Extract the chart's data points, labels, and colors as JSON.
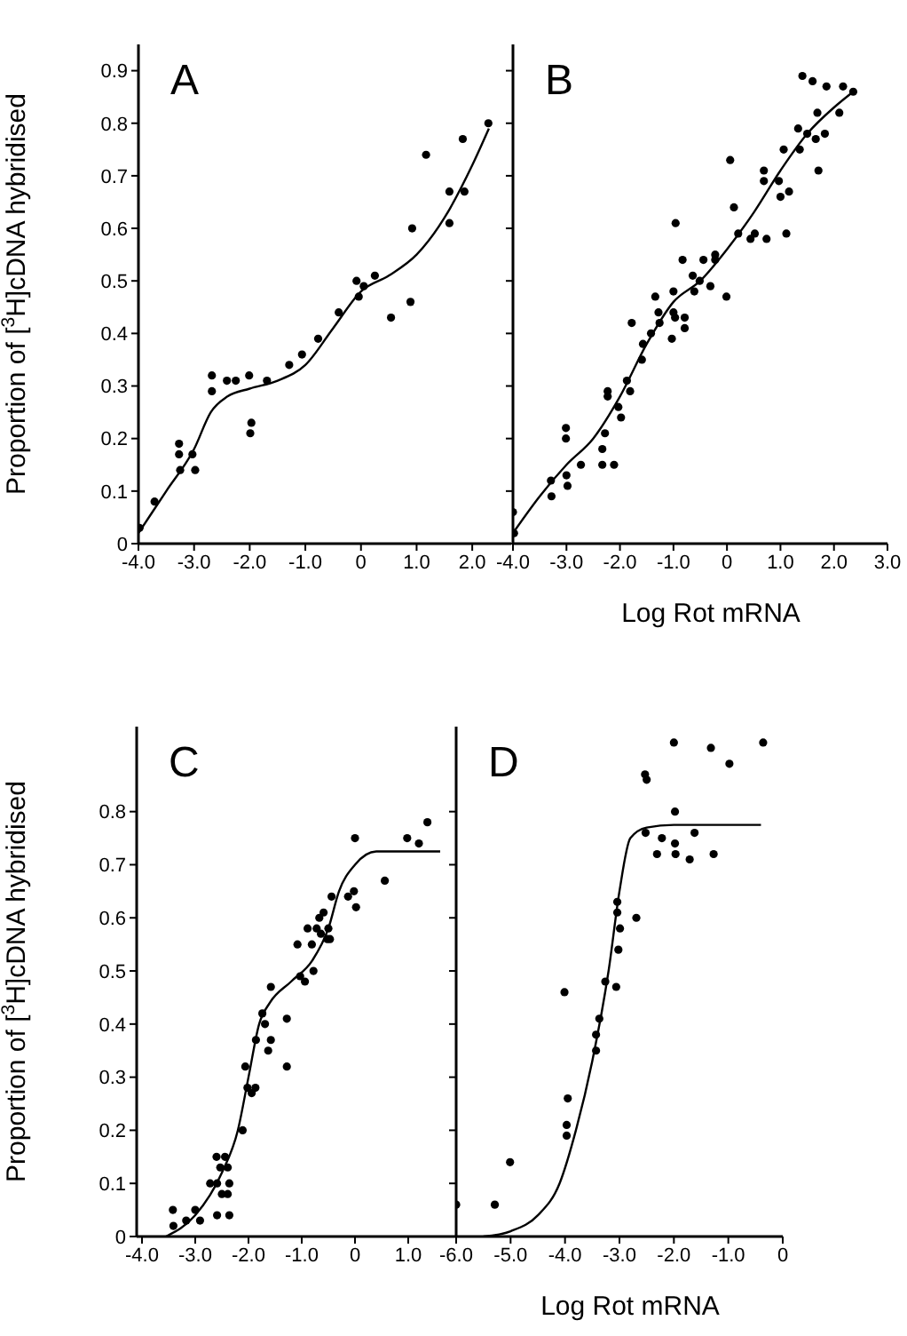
{
  "chart_data": [
    {
      "type": "scatter",
      "title": "A",
      "ylabel": "Proportion of [$^{3}$H]cDNA hybridised",
      "xlim": [
        -4.0,
        2.7
      ],
      "ylim": [
        0,
        0.95
      ],
      "xticks": [
        {
          "value": -4,
          "label": "-4.0"
        },
        {
          "value": -3,
          "label": "-3.0"
        },
        {
          "value": -2,
          "label": "-2.0"
        },
        {
          "value": -1,
          "label": "-1.0"
        },
        {
          "value": 0,
          "label": "0"
        },
        {
          "value": 1,
          "label": "1.0"
        },
        {
          "value": 2,
          "label": "2.0"
        }
      ],
      "yticks": [
        0,
        0.1,
        0.2,
        0.3,
        0.4,
        0.5,
        0.6,
        0.7,
        0.8,
        0.9
      ],
      "series": [
        {
          "marker": "circle",
          "color": "#000000",
          "x": [
            -3.98,
            -3.71,
            -3.27,
            -3.27,
            -3.25,
            -3.03,
            -2.98,
            -2.68,
            -2.68,
            -2.41,
            -2.25,
            -2.01,
            -1.97,
            -1.99,
            -1.69,
            -1.29,
            -1.06,
            -0.77,
            -0.4,
            -0.08,
            -0.04,
            0.05,
            0.25,
            0.54,
            0.89,
            0.92,
            1.17,
            1.59,
            1.59,
            1.86,
            1.83,
            2.29
          ],
          "values": [
            0.03,
            0.08,
            0.19,
            0.17,
            0.14,
            0.17,
            0.14,
            0.32,
            0.29,
            0.31,
            0.31,
            0.32,
            0.23,
            0.21,
            0.31,
            0.34,
            0.36,
            0.39,
            0.44,
            0.5,
            0.47,
            0.49,
            0.51,
            0.43,
            0.46,
            0.6,
            0.74,
            0.61,
            0.67,
            0.67,
            0.77,
            0.8
          ]
        },
        {
          "type": "line",
          "marker": "none",
          "color": "#000000",
          "x": [
            -4,
            -3.5,
            -3.0,
            -2.7,
            -2.4,
            -2.0,
            -1.5,
            -1.0,
            -0.5,
            0,
            0.5,
            1.0,
            1.5,
            2.0,
            2.3
          ],
          "values": [
            0.02,
            0.1,
            0.18,
            0.25,
            0.28,
            0.295,
            0.31,
            0.34,
            0.41,
            0.48,
            0.51,
            0.55,
            0.62,
            0.72,
            0.79
          ]
        }
      ]
    },
    {
      "type": "scatter",
      "title": "B",
      "xlabel": "Log Rot mRNA",
      "tick_labels": "x",
      "xlim": [
        -4.0,
        3.0
      ],
      "ylim": [
        0,
        0.95
      ],
      "xticks": [
        {
          "value": -4,
          "label": "-4.0"
        },
        {
          "value": -3,
          "label": "-3.0"
        },
        {
          "value": -2,
          "label": "-2.0"
        },
        {
          "value": -1,
          "label": "-1.0"
        },
        {
          "value": 0,
          "label": "0"
        },
        {
          "value": 1,
          "label": "1.0"
        },
        {
          "value": 2,
          "label": "2.0"
        },
        {
          "value": 3,
          "label": "3.0"
        }
      ],
      "yticks": [
        0,
        0.1,
        0.2,
        0.3,
        0.4,
        0.5,
        0.6,
        0.7,
        0.8,
        0.9
      ],
      "series": [
        {
          "marker": "circle",
          "color": "#000000",
          "x": [
            -4.0,
            -3.98,
            -3.29,
            -3.28,
            -3.01,
            -3.01,
            -3.0,
            -2.98,
            -2.73,
            -2.33,
            -2.33,
            -2.28,
            -2.23,
            -2.23,
            -2.11,
            -2.03,
            -1.98,
            -1.87,
            -1.81,
            -1.78,
            -1.59,
            -1.57,
            -1.42,
            -1.34,
            -1.28,
            -1.26,
            -1.03,
            -1.0,
            -1.0,
            -0.97,
            -0.96,
            -0.79,
            -0.79,
            -0.83,
            -0.64,
            -0.61,
            -0.51,
            -0.44,
            -0.31,
            -0.22,
            -0.22,
            -0.01,
            0.06,
            0.13,
            0.21,
            0.44,
            0.52,
            0.69,
            0.69,
            0.74,
            0.97,
            1.0,
            1.06,
            1.16,
            1.11,
            1.33,
            1.36,
            1.41,
            1.5,
            1.6,
            1.66,
            1.69,
            1.71,
            1.83,
            1.86,
            2.1,
            2.17,
            2.36
          ],
          "values": [
            0.06,
            0.02,
            0.12,
            0.09,
            0.22,
            0.2,
            0.13,
            0.11,
            0.15,
            0.18,
            0.15,
            0.21,
            0.29,
            0.28,
            0.15,
            0.26,
            0.24,
            0.31,
            0.29,
            0.42,
            0.35,
            0.38,
            0.4,
            0.47,
            0.44,
            0.42,
            0.39,
            0.44,
            0.48,
            0.43,
            0.61,
            0.43,
            0.41,
            0.54,
            0.51,
            0.48,
            0.5,
            0.54,
            0.49,
            0.55,
            0.54,
            0.47,
            0.73,
            0.64,
            0.59,
            0.58,
            0.59,
            0.71,
            0.69,
            0.58,
            0.69,
            0.66,
            0.75,
            0.67,
            0.59,
            0.79,
            0.75,
            0.89,
            0.78,
            0.88,
            0.77,
            0.82,
            0.71,
            0.78,
            0.87,
            0.82,
            0.87,
            0.86
          ]
        },
        {
          "type": "line",
          "marker": "none",
          "color": "#000000",
          "x": [
            -4,
            -3.5,
            -3.0,
            -2.5,
            -2.0,
            -1.5,
            -1.0,
            -0.5,
            0,
            0.5,
            1.0,
            1.5,
            2.0,
            2.36
          ],
          "values": [
            0.02,
            0.09,
            0.15,
            0.2,
            0.28,
            0.38,
            0.46,
            0.5,
            0.56,
            0.63,
            0.71,
            0.78,
            0.83,
            0.86
          ]
        }
      ]
    },
    {
      "type": "scatter",
      "title": "C",
      "ylabel": "Proportion of [$^{3}$H]cDNA hybridised",
      "xlim": [
        -4.1,
        1.9
      ],
      "ylim": [
        0,
        0.96
      ],
      "xticks": [
        {
          "value": -4,
          "label": "-4.0"
        },
        {
          "value": -3,
          "label": "-3.0"
        },
        {
          "value": -2,
          "label": "-2.0"
        },
        {
          "value": -1,
          "label": "-1.0"
        },
        {
          "value": 0,
          "label": "0"
        },
        {
          "value": 1,
          "label": "1.0"
        }
      ],
      "yticks": [
        0,
        0.1,
        0.2,
        0.3,
        0.4,
        0.5,
        0.6,
        0.7,
        0.8
      ],
      "series": [
        {
          "marker": "circle",
          "color": "#000000",
          "x": [
            -3.42,
            -3.41,
            -3.17,
            -3.0,
            -2.91,
            -2.72,
            -2.6,
            -2.59,
            -2.59,
            -2.53,
            -2.5,
            -2.44,
            -2.39,
            -2.39,
            -2.36,
            -2.36,
            -2.11,
            -2.06,
            -2.02,
            -1.94,
            -1.87,
            -1.86,
            -1.74,
            -1.69,
            -1.63,
            -1.58,
            -1.58,
            -1.28,
            -1.28,
            -1.08,
            -1.03,
            -0.94,
            -0.89,
            -0.81,
            -0.78,
            -0.72,
            -0.67,
            -0.64,
            -0.59,
            -0.52,
            -0.5,
            -0.47,
            -0.44,
            -0.13,
            -0.02,
            0.0,
            0.02,
            0.56,
            0.98,
            1.2,
            1.36
          ],
          "values": [
            0.05,
            0.02,
            0.03,
            0.05,
            0.03,
            0.1,
            0.15,
            0.1,
            0.04,
            0.13,
            0.08,
            0.15,
            0.13,
            0.08,
            0.1,
            0.04,
            0.2,
            0.32,
            0.28,
            0.27,
            0.28,
            0.37,
            0.42,
            0.4,
            0.35,
            0.37,
            0.47,
            0.41,
            0.32,
            0.55,
            0.49,
            0.48,
            0.58,
            0.55,
            0.5,
            0.58,
            0.6,
            0.57,
            0.61,
            0.56,
            0.58,
            0.56,
            0.64,
            0.64,
            0.65,
            0.75,
            0.62,
            0.67,
            0.75,
            0.74,
            0.78
          ]
        },
        {
          "type": "line",
          "marker": "none",
          "color": "#000000",
          "x": [
            -3.55,
            -3.0,
            -2.5,
            -2.2,
            -2.0,
            -1.8,
            -1.6,
            -1.2,
            -0.8,
            -0.5,
            -0.3,
            0,
            0.4,
            1.6
          ],
          "values": [
            0,
            0.04,
            0.12,
            0.2,
            0.3,
            0.4,
            0.44,
            0.48,
            0.52,
            0.58,
            0.65,
            0.7,
            0.725,
            0.725
          ]
        }
      ]
    },
    {
      "type": "scatter",
      "title": "D",
      "xlabel": "Log Rot mRNA",
      "tick_labels": "x",
      "xlim": [
        -6.0,
        0
      ],
      "ylim": [
        0,
        0.96
      ],
      "xticks": [
        {
          "value": -6,
          "label": "-6.0"
        },
        {
          "value": -5,
          "label": "-5.0"
        },
        {
          "value": -4,
          "label": "-4.0"
        },
        {
          "value": -3,
          "label": "-3.0"
        },
        {
          "value": -2,
          "label": "-2.0"
        },
        {
          "value": -1,
          "label": "-1.0"
        },
        {
          "value": 0,
          "label": "0"
        }
      ],
      "yticks": [
        0,
        0.1,
        0.2,
        0.3,
        0.4,
        0.5,
        0.6,
        0.7,
        0.8
      ],
      "series": [
        {
          "marker": "circle",
          "color": "#000000",
          "x": [
            -6.0,
            -5.29,
            -5.01,
            -4.01,
            -3.95,
            -3.97,
            -3.97,
            -3.43,
            -3.43,
            -3.37,
            -3.26,
            -3.06,
            -3.04,
            -3.04,
            -3.02,
            -2.99,
            -2.69,
            -2.53,
            -2.5,
            -2.52,
            -2.31,
            -2.22,
            -2.0,
            -1.98,
            -1.98,
            -1.97,
            -1.71,
            -1.62,
            -1.32,
            -1.27,
            -0.98,
            -0.36
          ],
          "values": [
            0.06,
            0.06,
            0.14,
            0.46,
            0.26,
            0.21,
            0.19,
            0.38,
            0.35,
            0.41,
            0.48,
            0.47,
            0.63,
            0.61,
            0.54,
            0.58,
            0.6,
            0.87,
            0.86,
            0.76,
            0.72,
            0.75,
            0.93,
            0.8,
            0.74,
            0.72,
            0.71,
            0.76,
            0.92,
            0.72,
            0.89,
            0.93
          ]
        },
        {
          "type": "line",
          "marker": "none",
          "color": "#000000",
          "x": [
            -5.5,
            -5.0,
            -4.5,
            -4.1,
            -3.8,
            -3.5,
            -3.2,
            -3.0,
            -2.8,
            -2.5,
            -2.0,
            -0.4
          ],
          "values": [
            0,
            0.01,
            0.04,
            0.1,
            0.2,
            0.33,
            0.5,
            0.65,
            0.75,
            0.77,
            0.775,
            0.775
          ]
        }
      ]
    }
  ]
}
